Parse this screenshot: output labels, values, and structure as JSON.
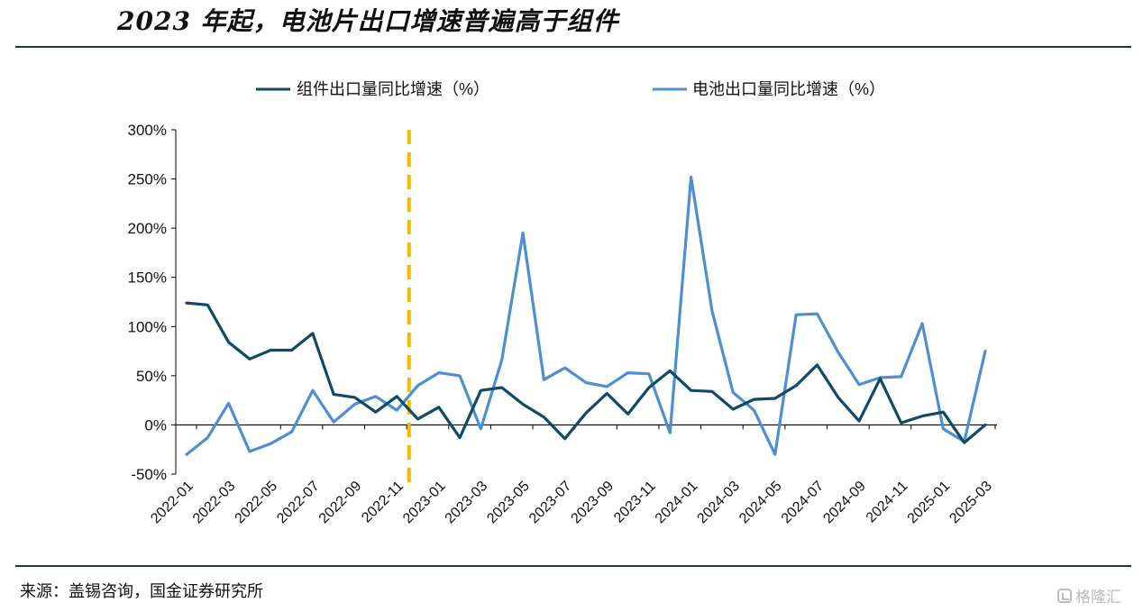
{
  "header": {
    "title": "2023 年起，电池片出口增速普遍高于组件"
  },
  "footer": {
    "source": "来源：盖锡咨询，国金证券研究所",
    "watermark": "格隆汇"
  },
  "colors": {
    "modules": "#0f4a66",
    "cells": "#4d8fcf",
    "marker_line": "#f5b800",
    "axis": "#000000"
  },
  "chart_data": {
    "type": "line",
    "title": "2023 年起，电池片出口增速普遍高于组件",
    "xlabel": "",
    "ylabel": "",
    "ylim": [
      -50,
      300
    ],
    "yticks": [
      -50,
      0,
      50,
      100,
      150,
      200,
      250,
      300
    ],
    "ytick_labels": [
      "-50%",
      "0%",
      "50%",
      "100%",
      "150%",
      "200%",
      "250%",
      "300%"
    ],
    "legend_position": "top",
    "grid": false,
    "x": [
      "2022-01",
      "2022-02",
      "2022-03",
      "2022-04",
      "2022-05",
      "2022-06",
      "2022-07",
      "2022-08",
      "2022-09",
      "2022-10",
      "2022-11",
      "2022-12",
      "2023-01",
      "2023-02",
      "2023-03",
      "2023-04",
      "2023-05",
      "2023-06",
      "2023-07",
      "2023-08",
      "2023-09",
      "2023-10",
      "2023-11",
      "2023-12",
      "2024-01",
      "2024-02",
      "2024-03",
      "2024-04",
      "2024-05",
      "2024-06",
      "2024-07",
      "2024-08",
      "2024-09",
      "2024-10",
      "2024-11",
      "2024-12",
      "2025-01",
      "2025-02",
      "2025-03"
    ],
    "xtick_labels": [
      "2022-01",
      "2022-03",
      "2022-05",
      "2022-07",
      "2022-09",
      "2022-11",
      "2023-01",
      "2023-03",
      "2023-05",
      "2023-07",
      "2023-09",
      "2023-11",
      "2024-01",
      "2024-03",
      "2024-05",
      "2024-07",
      "2024-09",
      "2024-11",
      "2025-01",
      "2025-03"
    ],
    "vertical_marker": "2022-12",
    "series": [
      {
        "name": "组件出口量同比增速（%）",
        "color": "#0f4a66",
        "values": [
          124,
          122,
          84,
          67,
          76,
          76,
          93,
          31,
          28,
          13,
          29,
          6,
          18,
          -13,
          35,
          38,
          21,
          8,
          -14,
          12,
          32,
          11,
          38,
          55,
          35,
          34,
          16,
          26,
          27,
          40,
          61,
          28,
          4,
          47,
          2,
          9,
          13,
          -18,
          0
        ]
      },
      {
        "name": "电池出口量同比增速（%）",
        "color": "#4d8fcf",
        "values": [
          -30,
          -13,
          22,
          -27,
          -19,
          -7,
          35,
          3,
          21,
          29,
          15,
          40,
          53,
          50,
          -4,
          66,
          195,
          46,
          58,
          43,
          39,
          53,
          52,
          -8,
          252,
          116,
          33,
          15,
          -30,
          112,
          113,
          74,
          41,
          48,
          49,
          103,
          -4,
          -17,
          75
        ]
      }
    ]
  }
}
